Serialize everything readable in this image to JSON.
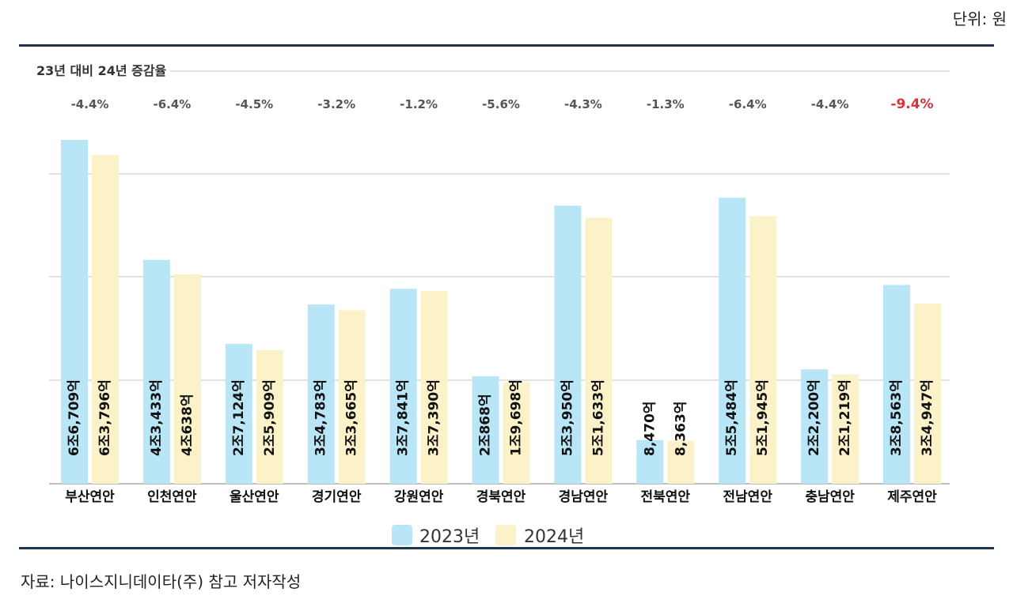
{
  "unit_label": "단위: 원",
  "source_text": "자료: 나이스지니데이타(주) 참고 저자작성",
  "colors": {
    "y2023": "#b9e6f7",
    "y2024": "#fbf2c9",
    "highlight": "#d9323b",
    "rule": "#1f3650"
  },
  "chart_data": {
    "type": "bar",
    "subtitle": "23년 대비 24년 증감율",
    "categories": [
      "부산연안",
      "인천연안",
      "울산연안",
      "경기연안",
      "강원연안",
      "경북연안",
      "경남연안",
      "전북연안",
      "전남연안",
      "충남연안",
      "제주연안"
    ],
    "series": [
      {
        "name": "2023년",
        "values": [
          66709,
          43433,
          27124,
          34783,
          37841,
          20868,
          53950,
          8470,
          55484,
          22200,
          38563
        ],
        "labels": [
          "6조6,709억",
          "4조3,433억",
          "2조7,124억",
          "3조4,783억",
          "3조7,841억",
          "2조868억",
          "5조3,950억",
          "8,470억",
          "5조5,484억",
          "2조2,200억",
          "3조8,563억"
        ]
      },
      {
        "name": "2024년",
        "values": [
          63796,
          40638,
          25909,
          33665,
          37390,
          19698,
          51633,
          8363,
          51945,
          21219,
          34947
        ],
        "labels": [
          "6조3,796억",
          "4조638억",
          "2조5,909억",
          "3조3,665억",
          "3조7,390억",
          "1조9,698억",
          "5조1,633억",
          "8,363억",
          "5조1,945억",
          "2조1,219억",
          "3조4,947억"
        ]
      }
    ],
    "change_pct": [
      "-4.4%",
      "-6.4%",
      "-4.5%",
      "-3.2%",
      "-1.2%",
      "-5.6%",
      "-4.3%",
      "-1.3%",
      "-6.4%",
      "-4.4%",
      "-9.4%"
    ],
    "highlight_index": 10,
    "ylim": [
      0,
      67000
    ],
    "grid": true,
    "legend_position": "bottom-center"
  }
}
